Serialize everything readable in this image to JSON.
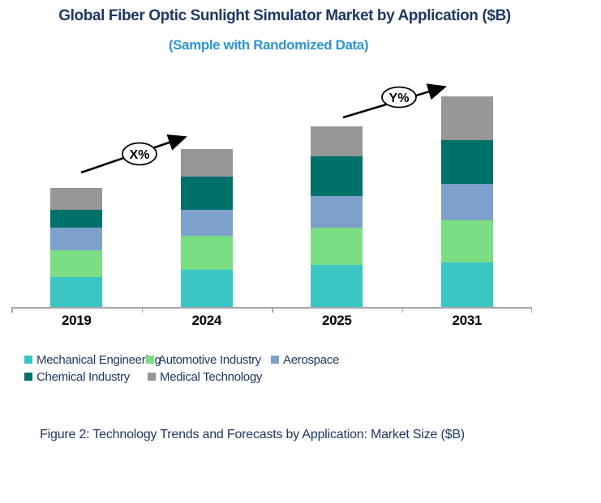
{
  "header": {
    "title": "Global Fiber Optic Sunlight Simulator Market by Application ($B)",
    "subtitle": "(Sample with Randomized Data)"
  },
  "chart_data": {
    "type": "bar",
    "stacked": true,
    "title": "Global Fiber Optic Sunlight Simulator Market by Application ($B)",
    "subtitle": "(Sample with Randomized Data)",
    "unit": "$B",
    "categories": [
      "2019",
      "2024",
      "2025",
      "2031"
    ],
    "series": [
      {
        "name": "Mechanical Engineering",
        "color": "#3BC6C4",
        "values": [
          3.7,
          4.6,
          5.2,
          5.5
        ]
      },
      {
        "name": "Automotive Industry",
        "color": "#7BDD84",
        "values": [
          3.3,
          4.2,
          4.6,
          5.2
        ]
      },
      {
        "name": "Aerospace",
        "color": "#7EA1CB",
        "values": [
          2.8,
          3.2,
          3.9,
          4.5
        ]
      },
      {
        "name": "Chemical Industry",
        "color": "#00706A",
        "values": [
          2.2,
          4.1,
          4.9,
          5.4
        ]
      },
      {
        "name": "Medical Technology",
        "color": "#979797",
        "values": [
          2.7,
          3.4,
          3.7,
          5.4
        ]
      }
    ],
    "totals": [
      14.7,
      19.5,
      22.3,
      26.0
    ],
    "ylim": [
      0,
      28.4
    ],
    "grid": false,
    "legend_position": "bottom",
    "annotations": [
      {
        "label": "X%",
        "type": "growth-arrow",
        "between": [
          "2019",
          "2024"
        ]
      },
      {
        "label": "Y%",
        "type": "growth-arrow",
        "between": [
          "2025",
          "2031"
        ]
      }
    ],
    "colors": {
      "title_navy": "#1F3864",
      "subtitle_blue": "#2E95D3",
      "axis_gray": "#A7A7A7",
      "arrow_black": "#000000"
    }
  },
  "footer": {
    "caption": "Figure 2: Technology Trends and Forecasts by Application: Market Size ($B)"
  }
}
